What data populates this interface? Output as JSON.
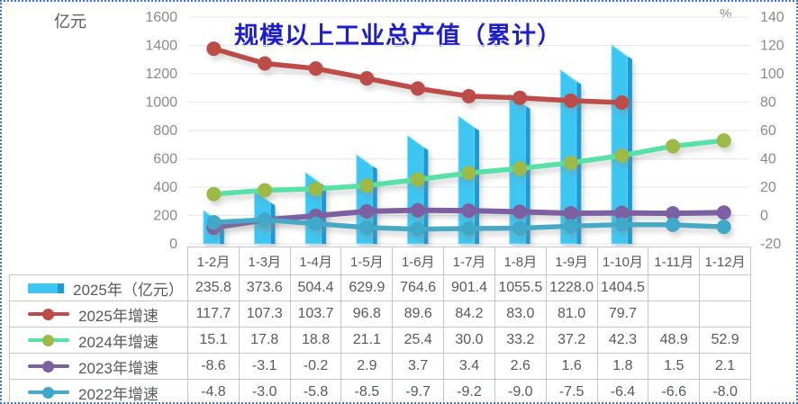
{
  "page": {
    "border_color": "#3c78dc",
    "background": "#ffffff"
  },
  "chart_data": {
    "type": "combo",
    "title": "规模以上工业总产值（累计）",
    "title_color": "#1f1fc8",
    "grid": true,
    "legend_position": "table-left",
    "categories": [
      "1-2月",
      "1-3月",
      "1-4月",
      "1-5月",
      "1-6月",
      "1-7月",
      "1-8月",
      "1-9月",
      "1-10月",
      "1-11月",
      "1-12月"
    ],
    "left_axis": {
      "label": "亿元",
      "min": 0,
      "max": 1600,
      "step": 200,
      "ticks": [
        0,
        200,
        400,
        600,
        800,
        1000,
        1200,
        1400,
        1600
      ]
    },
    "right_axis": {
      "label": "%",
      "min": -20,
      "max": 140,
      "step": 20,
      "ticks": [
        -20,
        0,
        20,
        40,
        60,
        80,
        100,
        120,
        140
      ]
    },
    "series": [
      {
        "name": "2025年（亿元）",
        "type": "bar",
        "axis": "left",
        "color": "#3ec6f2",
        "side_color": "#1e9ad6",
        "edge_color": "#8ce2fb",
        "values": [
          235.8,
          373.6,
          504.4,
          629.9,
          764.6,
          901.4,
          1055.5,
          1228.0,
          1404.5,
          null,
          null
        ]
      },
      {
        "name": "2025年增速",
        "type": "line",
        "axis": "right",
        "color": "#bd4b47",
        "marker_color": "#bd4b47",
        "width": 5.5,
        "values": [
          117.7,
          107.3,
          103.7,
          96.8,
          89.6,
          84.2,
          83.0,
          81.0,
          79.7,
          null,
          null
        ]
      },
      {
        "name": "2024年增速",
        "type": "line",
        "axis": "right",
        "color": "#58e1a6",
        "marker_color": "#9cba45",
        "width": 5.5,
        "values": [
          15.1,
          17.8,
          18.8,
          21.1,
          25.4,
          30.0,
          33.2,
          37.2,
          42.3,
          48.9,
          52.9
        ]
      },
      {
        "name": "2023年增速",
        "type": "line",
        "axis": "right",
        "color": "#7c60a2",
        "marker_color": "#7c60a2",
        "width": 6,
        "values": [
          -8.6,
          -3.1,
          -0.2,
          2.9,
          3.7,
          3.4,
          2.6,
          1.6,
          1.8,
          1.5,
          2.1
        ]
      },
      {
        "name": "2022年增速",
        "type": "line",
        "axis": "right",
        "color": "#46a9c6",
        "marker_color": "#3fa8c8",
        "width": 5.5,
        "values": [
          -4.8,
          -3.0,
          -5.8,
          -8.5,
          -9.7,
          -9.2,
          -9.0,
          -7.5,
          -6.4,
          -6.6,
          -8.0
        ]
      }
    ]
  }
}
